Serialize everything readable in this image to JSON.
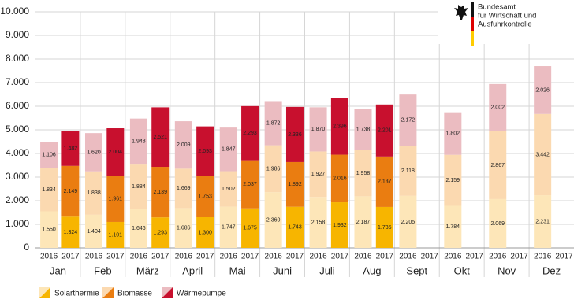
{
  "chart_data": {
    "type": "grouped-stacked-bar",
    "logo": [
      "Bundesamt",
      "für Wirtschaft und",
      "Ausfuhrkontrolle"
    ],
    "categories": [
      "Jan",
      "Feb",
      "März",
      "April",
      "Mai",
      "Juni",
      "Juli",
      "Aug",
      "Sept",
      "Okt",
      "Nov",
      "Dez"
    ],
    "groups": [
      "2016",
      "2017"
    ],
    "ylim": [
      0,
      10000
    ],
    "yticks": [
      0,
      {
        "value": 1000,
        "label": "1.000"
      },
      {
        "value": 2000,
        "label": "2.000"
      },
      {
        "value": 3000,
        "label": "3.000"
      },
      {
        "value": 4000,
        "label": "4.000"
      },
      {
        "value": 5000,
        "label": "5.000"
      },
      {
        "value": 6000,
        "label": "6.000"
      },
      {
        "value": 7000,
        "label": "7.000"
      },
      {
        "value": 8000,
        "label": "8.000"
      },
      {
        "value": 9000,
        "label": "9.000"
      },
      {
        "value": 10000,
        "label": "10.000"
      }
    ],
    "grid": true,
    "series": [
      {
        "name": "Solarthermie",
        "colors": [
          "#fde6b8",
          "#f7b500"
        ],
        "values": [
          [
            1550,
            1404,
            1646,
            1686,
            1747,
            2360,
            2158,
            2187,
            2205,
            1784,
            2069,
            2231
          ],
          [
            1324,
            1101,
            1293,
            1300,
            1675,
            1743,
            1932,
            1735,
            null,
            null,
            null,
            null
          ]
        ],
        "value_labels": [
          [
            "1.550",
            "1.404",
            "1.646",
            "1.686",
            "1.747",
            "2.360",
            "2.158",
            "2.187",
            "2.205",
            "1.784",
            "2.069",
            "2.231"
          ],
          [
            "1.324",
            "1.101",
            "1.293",
            "1.300",
            "1.675",
            "1.743",
            "1.932",
            "1.735",
            null,
            null,
            null,
            null
          ]
        ]
      },
      {
        "name": "Biomasse",
        "colors": [
          "#fbd9b0",
          "#ea7d11"
        ],
        "values": [
          [
            1834,
            1838,
            1884,
            1669,
            1502,
            1986,
            1927,
            1958,
            2118,
            2159,
            2867,
            3442
          ],
          [
            2149,
            1961,
            2139,
            1753,
            2037,
            1892,
            2016,
            2137,
            null,
            null,
            null,
            null
          ]
        ],
        "value_labels": [
          [
            "1.834",
            "1.838",
            "1.884",
            "1.669",
            "1.502",
            "1.986",
            "1.927",
            "1.958",
            "2.118",
            "2.159",
            "2.867",
            "3.442"
          ],
          [
            "2.149",
            "1.961",
            "2.139",
            "1.753",
            "2.037",
            "1.892",
            "2.016",
            "2.137",
            null,
            null,
            null,
            null
          ]
        ]
      },
      {
        "name": "Wärmepumpe",
        "colors": [
          "#ebbcc1",
          "#c8102e"
        ],
        "values": [
          [
            1106,
            1620,
            1948,
            2009,
            1847,
            1872,
            1870,
            1738,
            2172,
            1802,
            2002,
            2026
          ],
          [
            1482,
            2004,
            2521,
            2093,
            2293,
            2336,
            2396,
            2201,
            null,
            null,
            null,
            null
          ]
        ],
        "value_labels": [
          [
            "1.106",
            "1.620",
            "1.948",
            "2.009",
            "1.847",
            "1.872",
            "1.870",
            "1.738",
            "2.172",
            "1.802",
            "2.002",
            "2.026"
          ],
          [
            "1.482",
            "2.004",
            "2.521",
            "2.093",
            "2.293",
            "2.336",
            "2.396",
            "2.201",
            null,
            null,
            null,
            null
          ]
        ]
      }
    ]
  }
}
